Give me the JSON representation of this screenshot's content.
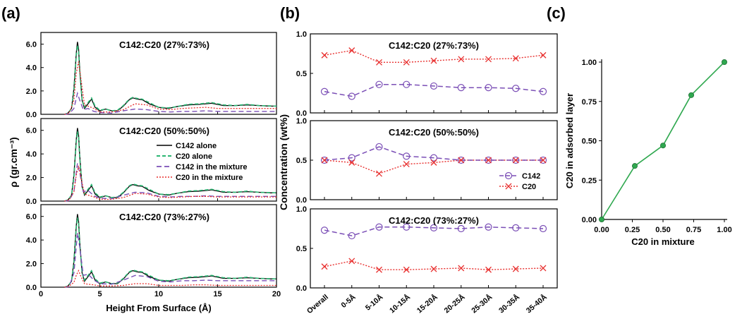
{
  "panel_labels": {
    "a": "(a)",
    "b": "(b)",
    "c": "(c)"
  },
  "colors": {
    "c142_alone": "#000000",
    "c20_alone": "#2bb673",
    "c142_mix": "#7b4fb6",
    "c20_mix": "#e8302f",
    "c_line": "#2fa84f",
    "c_marker": "#2fa84f"
  },
  "chart_data": [
    {
      "id": "a1",
      "type": "line",
      "title": "C142:C20 (27%:73%)",
      "xlim": [
        0,
        20
      ],
      "ylim": [
        0,
        7
      ],
      "yticks": [
        "0.0",
        "2.0",
        "4.0",
        "6.0"
      ],
      "ytick_values": [
        0,
        2,
        4,
        6
      ],
      "xticks": [],
      "series": [
        {
          "name": "C142 alone",
          "x": [
            2,
            2.3,
            2.6,
            2.8,
            3.0,
            3.1,
            3.2,
            3.3,
            3.5,
            3.7,
            4.0,
            4.3,
            4.6,
            5.0,
            5.5,
            6.0,
            6.5,
            7.0,
            7.5,
            7.8,
            8.2,
            8.6,
            9.2,
            10,
            10.8,
            11.5,
            12.5,
            13.5,
            14.5,
            15.5,
            16.5,
            17.5,
            18.5,
            19.5,
            20
          ],
          "y": [
            0,
            0.1,
            0.5,
            2.2,
            5.2,
            6.2,
            5.6,
            3.8,
            1.2,
            0.5,
            0.9,
            1.3,
            0.6,
            0.3,
            0.45,
            0.3,
            0.3,
            0.7,
            1.25,
            1.4,
            1.3,
            1.25,
            0.9,
            0.6,
            0.5,
            0.65,
            0.8,
            0.85,
            0.95,
            0.75,
            0.75,
            0.8,
            0.75,
            0.7,
            0.7
          ]
        },
        {
          "name": "C20 alone",
          "x": [
            2,
            2.3,
            2.6,
            2.8,
            3.0,
            3.1,
            3.2,
            3.3,
            3.5,
            3.7,
            4.0,
            4.3,
            4.6,
            5.0,
            5.5,
            6.0,
            6.5,
            7.0,
            7.5,
            7.8,
            8.2,
            8.6,
            9.2,
            10,
            10.8,
            11.5,
            12.5,
            13.5,
            14.5,
            15.5,
            16.5,
            17.5,
            18.5,
            19.5,
            20
          ],
          "y": [
            0,
            0.1,
            0.5,
            2.0,
            5.0,
            5.9,
            5.4,
            3.6,
            1.2,
            0.6,
            1.0,
            1.4,
            0.7,
            0.35,
            0.45,
            0.3,
            0.35,
            0.75,
            1.3,
            1.45,
            1.35,
            1.3,
            1.0,
            0.6,
            0.55,
            0.65,
            0.85,
            0.9,
            1.0,
            0.8,
            0.75,
            0.85,
            0.75,
            0.72,
            0.7
          ]
        },
        {
          "name": "C142 in the mixture",
          "x": [
            2,
            2.4,
            2.8,
            3.1,
            3.3,
            3.6,
            4.0,
            4.5,
            5,
            6,
            7,
            8,
            9,
            10,
            11,
            12,
            13,
            14,
            15,
            16,
            17,
            18,
            19,
            20
          ],
          "y": [
            0,
            0.05,
            0.5,
            1.8,
            1.2,
            0.4,
            0.5,
            0.25,
            0.15,
            0.1,
            0.3,
            0.45,
            0.4,
            0.25,
            0.2,
            0.25,
            0.25,
            0.3,
            0.25,
            0.25,
            0.25,
            0.25,
            0.25,
            0.25
          ]
        },
        {
          "name": "C20 in the mixture",
          "x": [
            2,
            2.4,
            2.8,
            3.0,
            3.2,
            3.4,
            3.7,
            4.0,
            4.5,
            5,
            6,
            7,
            8,
            9,
            10,
            11,
            12,
            13,
            14,
            15,
            16,
            17,
            18,
            19,
            20
          ],
          "y": [
            0,
            0.1,
            1.2,
            3.5,
            4.5,
            3.0,
            0.8,
            0.7,
            0.5,
            0.2,
            0.2,
            0.4,
            0.9,
            0.8,
            0.45,
            0.4,
            0.5,
            0.55,
            0.6,
            0.5,
            0.5,
            0.5,
            0.5,
            0.5,
            0.5
          ]
        }
      ]
    },
    {
      "id": "a2",
      "type": "line",
      "title": "C142:C20 (50%:50%)",
      "xlim": [
        0,
        20
      ],
      "ylim": [
        0,
        7
      ],
      "yticks": [
        "0.0",
        "2.0",
        "4.0",
        "6.0"
      ],
      "ytick_values": [
        0,
        2,
        4,
        6
      ],
      "xticks": [],
      "series": [
        {
          "name": "C142 alone",
          "x": [
            2,
            2.3,
            2.6,
            2.8,
            3.0,
            3.1,
            3.2,
            3.3,
            3.5,
            3.7,
            4.0,
            4.3,
            4.6,
            5.0,
            5.5,
            6.0,
            6.5,
            7.0,
            7.5,
            7.8,
            8.2,
            8.6,
            9.2,
            10,
            10.8,
            11.5,
            12.5,
            13.5,
            14.5,
            15.5,
            16.5,
            17.5,
            18.5,
            19.5,
            20
          ],
          "y": [
            0,
            0.1,
            0.5,
            2.2,
            5.2,
            6.2,
            5.6,
            3.8,
            1.2,
            0.5,
            0.9,
            1.3,
            0.6,
            0.3,
            0.45,
            0.3,
            0.3,
            0.7,
            1.25,
            1.4,
            1.3,
            1.25,
            0.9,
            0.6,
            0.5,
            0.65,
            0.8,
            0.85,
            0.95,
            0.75,
            0.75,
            0.8,
            0.75,
            0.7,
            0.7
          ]
        },
        {
          "name": "C20 alone",
          "x": [
            2,
            2.3,
            2.6,
            2.8,
            3.0,
            3.1,
            3.2,
            3.3,
            3.5,
            3.7,
            4.0,
            4.3,
            4.6,
            5.0,
            5.5,
            6.0,
            6.5,
            7.0,
            7.5,
            7.8,
            8.2,
            8.6,
            9.2,
            10,
            10.8,
            11.5,
            12.5,
            13.5,
            14.5,
            15.5,
            16.5,
            17.5,
            18.5,
            19.5,
            20
          ],
          "y": [
            0,
            0.1,
            0.5,
            2.0,
            5.0,
            5.9,
            5.4,
            3.6,
            1.2,
            0.6,
            1.0,
            1.4,
            0.7,
            0.35,
            0.45,
            0.3,
            0.35,
            0.75,
            1.3,
            1.45,
            1.35,
            1.3,
            1.0,
            0.6,
            0.55,
            0.65,
            0.85,
            0.9,
            1.0,
            0.8,
            0.75,
            0.85,
            0.75,
            0.72,
            0.7
          ]
        },
        {
          "name": "C142 in the mixture",
          "x": [
            2,
            2.4,
            2.8,
            3.1,
            3.3,
            3.6,
            4.0,
            4.5,
            5,
            6,
            7,
            8,
            9,
            10,
            11,
            12,
            13,
            14,
            15,
            16,
            17,
            18,
            19,
            20
          ],
          "y": [
            0,
            0.05,
            0.8,
            3.2,
            2.4,
            0.8,
            0.9,
            0.45,
            0.25,
            0.2,
            0.5,
            0.75,
            0.7,
            0.4,
            0.35,
            0.4,
            0.4,
            0.45,
            0.4,
            0.4,
            0.4,
            0.4,
            0.4,
            0.4
          ]
        },
        {
          "name": "C20 in the mixture",
          "x": [
            2,
            2.4,
            2.8,
            3.0,
            3.2,
            3.4,
            3.7,
            4.0,
            4.5,
            5,
            6,
            7,
            8,
            9,
            10,
            11,
            12,
            13,
            14,
            15,
            16,
            17,
            18,
            19,
            20
          ],
          "y": [
            0,
            0.1,
            0.8,
            2.2,
            3.0,
            2.0,
            0.6,
            0.5,
            0.35,
            0.15,
            0.15,
            0.3,
            0.65,
            0.6,
            0.35,
            0.3,
            0.35,
            0.4,
            0.4,
            0.35,
            0.35,
            0.35,
            0.35,
            0.35,
            0.35
          ]
        }
      ],
      "legend": [
        "C142 alone",
        "C20 alone",
        "C142 in the mixture",
        "C20 in the mixture"
      ]
    },
    {
      "id": "a3",
      "type": "line",
      "title": "C142:C20 (73%:27%)",
      "xlim": [
        0,
        20
      ],
      "ylim": [
        0,
        7
      ],
      "yticks": [
        "0.0",
        "2.0",
        "4.0",
        "6.0"
      ],
      "ytick_values": [
        0,
        2,
        4,
        6
      ],
      "xticks": [
        "0",
        "5",
        "10",
        "15",
        "20"
      ],
      "xtick_values": [
        0,
        5,
        10,
        15,
        20
      ],
      "xlabel": "Height From Surface (Å)",
      "series": [
        {
          "name": "C142 alone",
          "x": [
            2,
            2.3,
            2.6,
            2.8,
            3.0,
            3.1,
            3.2,
            3.3,
            3.5,
            3.7,
            4.0,
            4.3,
            4.6,
            5.0,
            5.5,
            6.0,
            6.5,
            7.0,
            7.5,
            7.8,
            8.2,
            8.6,
            9.2,
            10,
            10.8,
            11.5,
            12.5,
            13.5,
            14.5,
            15.5,
            16.5,
            17.5,
            18.5,
            19.5,
            20
          ],
          "y": [
            0,
            0.1,
            0.5,
            2.2,
            5.2,
            6.2,
            5.6,
            3.8,
            1.2,
            0.5,
            0.9,
            1.3,
            0.6,
            0.3,
            0.45,
            0.3,
            0.3,
            0.7,
            1.25,
            1.4,
            1.3,
            1.25,
            0.9,
            0.6,
            0.5,
            0.65,
            0.8,
            0.85,
            0.95,
            0.75,
            0.75,
            0.8,
            0.75,
            0.7,
            0.7
          ]
        },
        {
          "name": "C20 alone",
          "x": [
            2,
            2.3,
            2.6,
            2.8,
            3.0,
            3.1,
            3.2,
            3.3,
            3.5,
            3.7,
            4.0,
            4.3,
            4.6,
            5.0,
            5.5,
            6.0,
            6.5,
            7.0,
            7.5,
            7.8,
            8.2,
            8.6,
            9.2,
            10,
            10.8,
            11.5,
            12.5,
            13.5,
            14.5,
            15.5,
            16.5,
            17.5,
            18.5,
            19.5,
            20
          ],
          "y": [
            0,
            0.1,
            0.5,
            2.0,
            5.0,
            5.9,
            5.4,
            3.6,
            1.2,
            0.6,
            1.0,
            1.4,
            0.7,
            0.35,
            0.45,
            0.3,
            0.35,
            0.75,
            1.3,
            1.45,
            1.35,
            1.3,
            1.0,
            0.6,
            0.55,
            0.65,
            0.85,
            0.9,
            1.0,
            0.8,
            0.75,
            0.85,
            0.75,
            0.72,
            0.7
          ]
        },
        {
          "name": "C142 in the mixture",
          "x": [
            2,
            2.4,
            2.8,
            3.1,
            3.3,
            3.6,
            4.0,
            4.5,
            5,
            6,
            7,
            8,
            9,
            10,
            11,
            12,
            13,
            14,
            15,
            16,
            17,
            18,
            19,
            20
          ],
          "y": [
            0,
            0.05,
            1.2,
            4.6,
            3.4,
            1.0,
            1.1,
            0.6,
            0.3,
            0.25,
            0.6,
            1.0,
            0.9,
            0.5,
            0.45,
            0.55,
            0.55,
            0.6,
            0.55,
            0.55,
            0.55,
            0.55,
            0.55,
            0.55
          ]
        },
        {
          "name": "C20 in the mixture",
          "x": [
            2,
            2.4,
            2.8,
            3.0,
            3.2,
            3.4,
            3.7,
            4.0,
            4.5,
            5,
            6,
            7,
            8,
            9,
            10,
            11,
            12,
            13,
            14,
            15,
            16,
            17,
            18,
            19,
            20
          ],
          "y": [
            0,
            0.1,
            0.4,
            1.0,
            1.4,
            0.9,
            0.3,
            0.25,
            0.2,
            0.1,
            0.1,
            0.15,
            0.3,
            0.3,
            0.15,
            0.15,
            0.15,
            0.2,
            0.2,
            0.15,
            0.15,
            0.15,
            0.15,
            0.15,
            0.15
          ]
        }
      ]
    },
    {
      "id": "b1",
      "type": "line",
      "title": "C142:C20 (27%:73%)",
      "ylim": [
        0,
        1
      ],
      "yticks": [
        "0.0",
        "0.5",
        "1.0"
      ],
      "ytick_values": [
        0,
        0.5,
        1
      ],
      "categories": [
        "Overall",
        "0-5Å",
        "5-10Å",
        "10-15Å",
        "15-20Å",
        "20-25Å",
        "25-30Å",
        "30-35Å",
        "35-40Å"
      ],
      "series": [
        {
          "name": "C142",
          "values": [
            0.27,
            0.21,
            0.36,
            0.36,
            0.34,
            0.32,
            0.32,
            0.31,
            0.27
          ]
        },
        {
          "name": "C20",
          "values": [
            0.73,
            0.79,
            0.64,
            0.64,
            0.66,
            0.68,
            0.68,
            0.69,
            0.73
          ]
        }
      ]
    },
    {
      "id": "b2",
      "type": "line",
      "title": "C142:C20 (50%:50%)",
      "ylim": [
        0,
        1
      ],
      "yticks": [
        "0.0",
        "0.5",
        "1.0"
      ],
      "ytick_values": [
        0,
        0.5,
        1
      ],
      "categories": [
        "Overall",
        "0-5Å",
        "5-10Å",
        "10-15Å",
        "15-20Å",
        "20-25Å",
        "25-30Å",
        "30-35Å",
        "35-40Å"
      ],
      "series": [
        {
          "name": "C142",
          "values": [
            0.5,
            0.53,
            0.67,
            0.55,
            0.53,
            0.5,
            0.5,
            0.5,
            0.5
          ]
        },
        {
          "name": "C20",
          "values": [
            0.5,
            0.47,
            0.33,
            0.45,
            0.47,
            0.5,
            0.5,
            0.5,
            0.5
          ]
        }
      ],
      "legend": [
        "C142",
        "C20"
      ]
    },
    {
      "id": "b3",
      "type": "line",
      "title": "C142:C20 (73%:27%)",
      "ylim": [
        0,
        1
      ],
      "yticks": [
        "0.0",
        "0.5",
        "1.0"
      ],
      "ytick_values": [
        0,
        0.5,
        1
      ],
      "categories": [
        "Overall",
        "0-5Å",
        "5-10Å",
        "10-15Å",
        "15-20Å",
        "20-25Å",
        "25-30Å",
        "30-35Å",
        "35-40Å"
      ],
      "series": [
        {
          "name": "C142",
          "values": [
            0.73,
            0.66,
            0.77,
            0.77,
            0.76,
            0.75,
            0.77,
            0.76,
            0.75
          ]
        },
        {
          "name": "C20",
          "values": [
            0.27,
            0.34,
            0.23,
            0.23,
            0.24,
            0.25,
            0.23,
            0.24,
            0.25
          ]
        }
      ]
    },
    {
      "id": "c",
      "type": "line",
      "xlabel": "C20 in mixture",
      "ylabel": "C20 in adsorbed layer",
      "xlim": [
        0,
        1
      ],
      "ylim": [
        0,
        1
      ],
      "xticks": [
        "0.00",
        "0.25",
        "0.50",
        "0.75",
        "1.00"
      ],
      "xtick_values": [
        0,
        0.25,
        0.5,
        0.75,
        1
      ],
      "yticks": [
        "0.00",
        "0.25",
        "0.50",
        "0.75",
        "1.00"
      ],
      "ytick_values": [
        0,
        0.25,
        0.5,
        0.75,
        1
      ],
      "x": [
        0,
        0.27,
        0.5,
        0.73,
        1
      ],
      "y": [
        0,
        0.34,
        0.47,
        0.79,
        1
      ]
    }
  ],
  "axes_labels": {
    "a_ylabel": "ρ (gr.cm⁻³)",
    "b_ylabel": "Concentration (wt%)"
  }
}
